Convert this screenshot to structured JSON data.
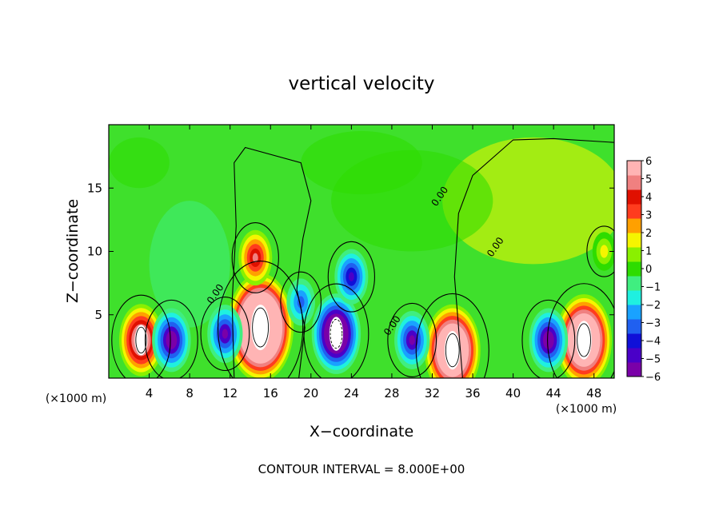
{
  "chart_data": {
    "type": "heatmap",
    "title": "vertical velocity",
    "xlabel": "X−coordinate",
    "ylabel": "Z−coordinate",
    "x_unit": "(×1000 m)",
    "x_unit_right": "(×1000 m)",
    "footer": "CONTOUR INTERVAL = 8.000E+00",
    "xlim": [
      0,
      50
    ],
    "ylim": [
      0,
      20
    ],
    "x_ticks": [
      4,
      8,
      12,
      16,
      20,
      24,
      28,
      32,
      36,
      40,
      44,
      48
    ],
    "y_ticks": [
      5,
      10,
      15
    ],
    "contour_label": "0.00",
    "colorbar": {
      "range": [
        -6,
        6
      ],
      "ticks": [
        6,
        5,
        4,
        3,
        2,
        1,
        0,
        -1,
        -2,
        -3,
        -4,
        -5,
        -6
      ],
      "tick_labels": [
        "6",
        "5",
        "4",
        "3",
        "2",
        "1",
        "0",
        "−1",
        "−2",
        "−3",
        "−4",
        "−5",
        "−6"
      ],
      "colors": [
        "#7a00a8",
        "#4a00c8",
        "#1010d8",
        "#2060f0",
        "#19a2ff",
        "#1ff0e0",
        "#40ee80",
        "#2edc00",
        "#8af000",
        "#f5f500",
        "#ffa000",
        "#ff3c1e",
        "#e01000",
        "#f08080",
        "#ffb4b4"
      ]
    },
    "features": [
      {
        "kind": "updraft",
        "x": 3.2,
        "z": 3.0,
        "w": 7.5
      },
      {
        "kind": "updraft",
        "x": 15.0,
        "z": 4.0,
        "w": 14
      },
      {
        "kind": "updraft",
        "x": 14.5,
        "z": 9.5,
        "w": 4.5
      },
      {
        "kind": "updraft",
        "x": 34.0,
        "z": 2.2,
        "w": 11
      },
      {
        "kind": "updraft",
        "x": 47.0,
        "z": 3.0,
        "w": 11
      },
      {
        "kind": "updraft",
        "x": 49.0,
        "z": 10.0,
        "w": 1.5
      },
      {
        "kind": "downdraft",
        "x": 6.2,
        "z": 3.0,
        "w": -6
      },
      {
        "kind": "downdraft",
        "x": 11.5,
        "z": 3.5,
        "w": -5
      },
      {
        "kind": "downdraft",
        "x": 22.5,
        "z": 3.5,
        "w": -9
      },
      {
        "kind": "downdraft",
        "x": 24.0,
        "z": 8.0,
        "w": -4.5
      },
      {
        "kind": "downdraft",
        "x": 30.0,
        "z": 3.0,
        "w": -5
      },
      {
        "kind": "downdraft",
        "x": 43.5,
        "z": 3.0,
        "w": -6
      },
      {
        "kind": "downdraft",
        "x": 19.0,
        "z": 6.0,
        "w": -3
      }
    ]
  }
}
